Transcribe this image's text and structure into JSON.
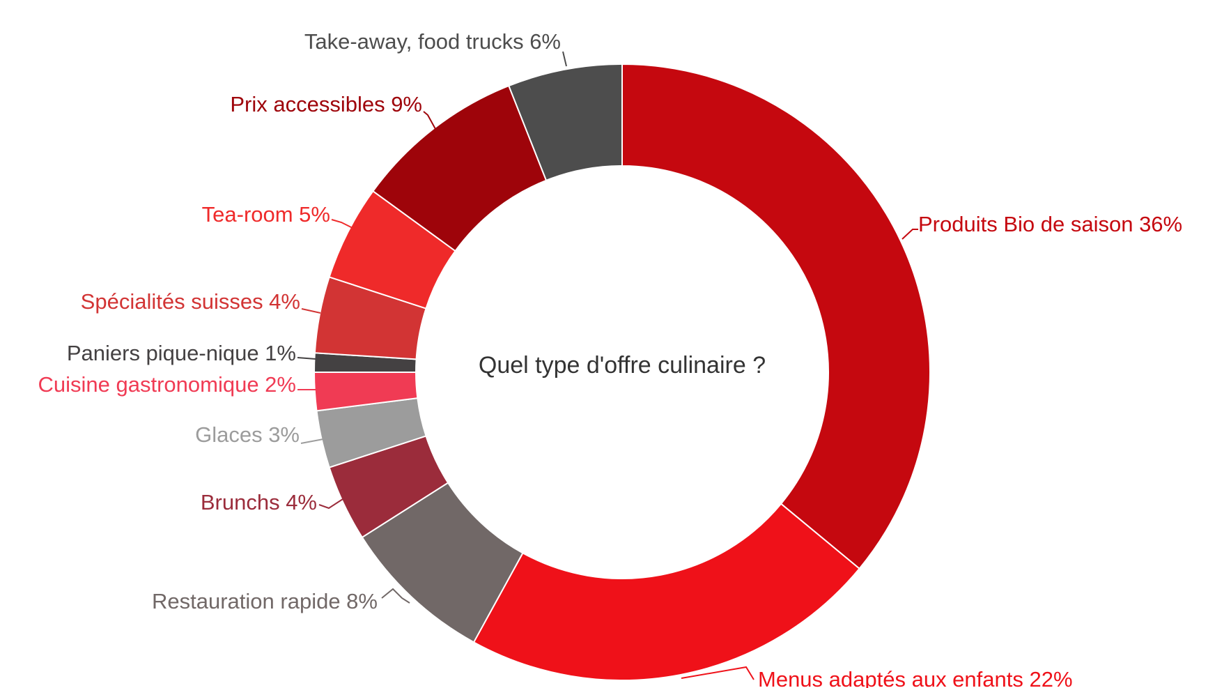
{
  "chart_data": {
    "type": "pie",
    "donut": true,
    "center_title": "Quel type d'offre culinaire ?",
    "slices": [
      {
        "label": "Produits Bio de saison 36%",
        "value": 36,
        "color": "#c5080f"
      },
      {
        "label": "Menus adaptés aux enfants 22%",
        "value": 22,
        "color": "#ef1119"
      },
      {
        "label": "Restauration rapide 8%",
        "value": 8,
        "color": "#716867"
      },
      {
        "label": "Brunchs 4%",
        "value": 4,
        "color": "#9b2c3b"
      },
      {
        "label": "Glaces 3%",
        "value": 3,
        "color": "#9c9c9c"
      },
      {
        "label": "Cuisine gastronomique 2%",
        "value": 2,
        "color": "#f03b54"
      },
      {
        "label": "Paniers pique-nique 1%",
        "value": 1,
        "color": "#444142"
      },
      {
        "label": "Spécialités suisses 4%",
        "value": 4,
        "color": "#d23434"
      },
      {
        "label": "Tea-room 5%",
        "value": 5,
        "color": "#ef2a2a"
      },
      {
        "label": "Prix accessibles 9%",
        "value": 9,
        "color": "#9e040a"
      },
      {
        "label": "Take-away, food trucks 6%",
        "value": 6,
        "color": "#4d4d4d"
      }
    ],
    "label_colors": {
      "Produits Bio de saison 36%": "#c5080f",
      "Menus adaptés aux enfants 22%": "#ef1119",
      "Restauration rapide 8%": "#716867",
      "Brunchs 4%": "#9b2c3b",
      "Glaces 3%": "#9c9c9c",
      "Cuisine gastronomique 2%": "#f03b54",
      "Paniers pique-nique 1%": "#444142",
      "Spécialités suisses 4%": "#d23434",
      "Tea-room 5%": "#ef2a2a",
      "Prix accessibles 9%": "#9e040a",
      "Take-away, food trucks 6%": "#4d4d4d"
    }
  }
}
